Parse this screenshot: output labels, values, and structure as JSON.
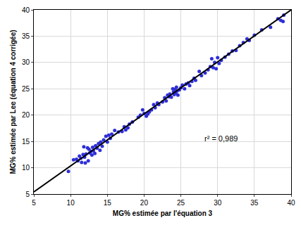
{
  "chart_data": {
    "type": "scatter",
    "x_label": "MG% estimée par l'équation 3",
    "y_label": "MG% estimée par Lee (équation 4 corrigée)",
    "xlim": [
      5,
      40
    ],
    "ylim": [
      5,
      40
    ],
    "xticks": [
      5,
      10,
      15,
      20,
      25,
      30,
      35,
      40
    ],
    "yticks": [
      5,
      10,
      15,
      20,
      25,
      30,
      35,
      40
    ],
    "grid": true,
    "series": [
      {
        "type": "scatter",
        "marker": "circle",
        "color": "#2e2ed8",
        "x": [
          9.7,
          10.4,
          10.8,
          11.0,
          11.2,
          11.4,
          11.5,
          11.7,
          11.8,
          11.9,
          12.0,
          12.1,
          12.3,
          12.4,
          12.5,
          12.6,
          12.8,
          12.9,
          13.0,
          13.1,
          13.3,
          13.4,
          13.6,
          13.8,
          14.0,
          14.1,
          14.3,
          14.5,
          14.8,
          15.0,
          15.2,
          15.4,
          15.6,
          16.0,
          16.5,
          17.0,
          17.3,
          17.5,
          17.8,
          18.0,
          18.4,
          19.2,
          19.5,
          19.8,
          20.0,
          20.3,
          20.5,
          20.7,
          21.0,
          21.3,
          21.5,
          21.8,
          22.0,
          22.5,
          22.8,
          23.0,
          23.2,
          23.4,
          23.5,
          23.7,
          23.9,
          24.0,
          24.1,
          24.2,
          24.3,
          24.4,
          24.5,
          24.6,
          24.8,
          25.0,
          25.2,
          25.5,
          25.7,
          26.0,
          26.2,
          26.5,
          26.8,
          27.0,
          27.5,
          27.8,
          28.3,
          28.7,
          29.0,
          29.2,
          29.4,
          29.6,
          29.8,
          30.0,
          30.2,
          30.5,
          31.0,
          31.5,
          32.0,
          32.5,
          33.0,
          33.5,
          34.0,
          34.3,
          35.0,
          36.0,
          37.2,
          38.2,
          38.6,
          38.9,
          39.0
        ],
        "values": [
          9.3,
          11.5,
          11.6,
          11.3,
          12.2,
          11.8,
          11.0,
          12.5,
          14.0,
          12.0,
          10.9,
          12.6,
          13.8,
          11.3,
          13.5,
          12.8,
          13.1,
          12.4,
          13.9,
          13.2,
          12.7,
          14.2,
          13.7,
          14.6,
          13.3,
          14.9,
          14.1,
          15.3,
          16.0,
          14.9,
          16.2,
          15.6,
          16.4,
          17.1,
          16.8,
          16.9,
          17.8,
          17.2,
          17.6,
          18.3,
          18.7,
          19.6,
          20.0,
          21.0,
          20.3,
          19.8,
          20.2,
          20.6,
          21.0,
          22.0,
          21.4,
          22.3,
          22.0,
          22.5,
          23.3,
          22.7,
          23.8,
          23.5,
          24.0,
          23.4,
          25.0,
          24.4,
          23.9,
          24.9,
          24.2,
          25.3,
          24.6,
          23.8,
          24.8,
          25.2,
          25.7,
          25.0,
          25.9,
          26.1,
          25.6,
          26.4,
          27.0,
          26.6,
          28.3,
          27.5,
          28.0,
          28.6,
          29.2,
          30.7,
          29.0,
          30.0,
          28.8,
          30.9,
          29.8,
          30.4,
          31.0,
          31.6,
          32.2,
          32.3,
          33.2,
          33.8,
          34.5,
          34.2,
          35.2,
          36.2,
          36.7,
          38.3,
          38.0,
          37.8,
          39.0
        ]
      },
      {
        "type": "line",
        "line_style": "solid",
        "color": "#000000",
        "x": [
          5,
          40
        ],
        "values": [
          5.4,
          40.0
        ]
      }
    ],
    "annotations": [
      {
        "text": "r² = 0,989",
        "x": 30.5,
        "y": 15.5
      }
    ]
  }
}
